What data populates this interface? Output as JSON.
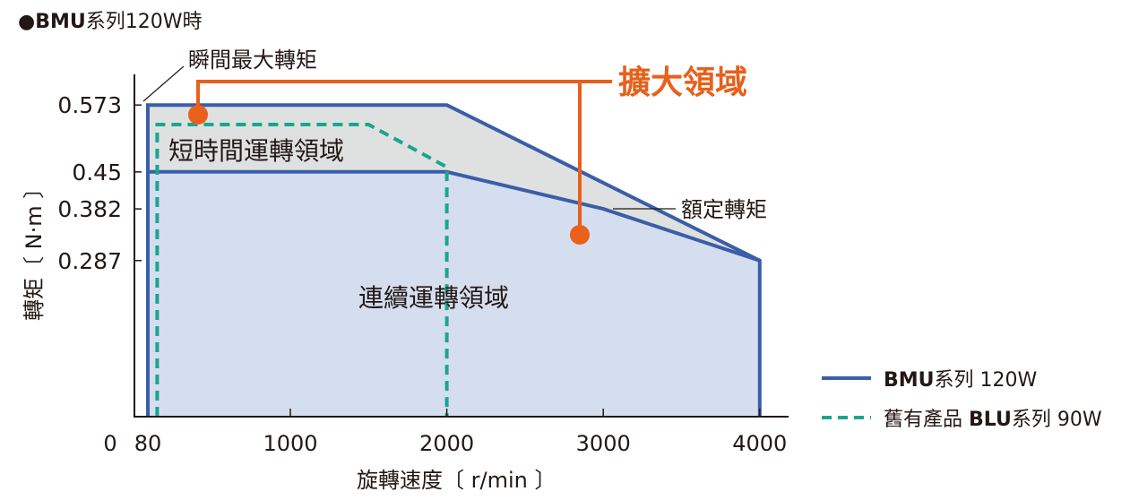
{
  "header": {
    "title_bold": "●BMU",
    "title_rest": "系列120W時"
  },
  "chart_data": {
    "type": "area",
    "title": "●BMU系列120W時",
    "xlabel": "旋轉速度〔 r/min 〕",
    "ylabel": "轉矩〔 N·m 〕",
    "x_ticks": [
      0,
      80,
      1000,
      2000,
      3000,
      4000
    ],
    "x_tick_labels": [
      "0",
      "80",
      "1000",
      "2000",
      "3000",
      "4000"
    ],
    "y_ticks": [
      0.573,
      0.45,
      0.382,
      0.287
    ],
    "y_tick_labels": [
      "0.573",
      "0.45",
      "0.382",
      "0.287"
    ],
    "xlim": [
      0,
      4200
    ],
    "ylim": [
      0,
      0.62
    ],
    "grid": false,
    "series": [
      {
        "name": "BMU系列 120W",
        "color": "#3a5ea8",
        "style": "solid",
        "points": [
          [
            80,
            0
          ],
          [
            80,
            0.573
          ],
          [
            2000,
            0.573
          ],
          [
            4000,
            0.287
          ],
          [
            4000,
            0
          ]
        ]
      },
      {
        "name": "BMU系列 120W",
        "color": "#3a5ea8",
        "style": "solid",
        "points": [
          [
            80,
            0.45
          ],
          [
            2000,
            0.45
          ],
          [
            3000,
            0.382
          ],
          [
            4000,
            0.287
          ]
        ]
      },
      {
        "name": "舊有產品 BLU系列 90W",
        "color": "#1aa58f",
        "style": "dashed",
        "points": [
          [
            140,
            0
          ],
          [
            140,
            0.537
          ],
          [
            1500,
            0.537
          ],
          [
            2000,
            0.459
          ],
          [
            2000,
            0
          ]
        ]
      }
    ],
    "regions": [
      {
        "label": "短時間運轉領域",
        "color": "#dfe1e1"
      },
      {
        "label": "連續運轉領域",
        "color": "#d5deef"
      }
    ],
    "annotations": [
      {
        "text": "瞬間最大轉矩"
      },
      {
        "text": "額定轉矩"
      },
      {
        "text": "擴大領域",
        "color": "#e8601c"
      }
    ],
    "legend": {
      "position": "bottom-right",
      "items": [
        {
          "name": "BMU系列 120W",
          "bold_part": "BMU",
          "rest": "系列 120W",
          "color": "#3a5ea8",
          "style": "solid"
        },
        {
          "name": "舊有產品 BLU系列 90W",
          "prefix": "舊有產品 ",
          "bold_part": "BLU",
          "rest": "系列 90W",
          "color": "#1aa58f",
          "style": "dashed"
        }
      ]
    }
  }
}
